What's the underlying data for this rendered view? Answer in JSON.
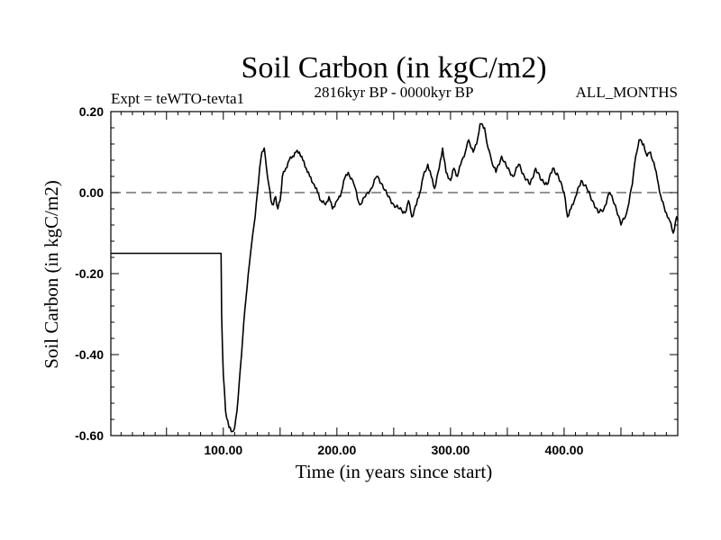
{
  "chart_data": {
    "type": "line",
    "title": "Soil Carbon (in kgC/m2)",
    "subtitle_left": "Expt = teWTO-tevta1",
    "subtitle_center": "2816kyr BP - 0000kyr BP",
    "subtitle_right": "ALL_MONTHS",
    "xlabel": "Time (in years since start)",
    "ylabel": "Soil Carbon (in kgC/m2)",
    "xlim": [
      1,
      500
    ],
    "ylim": [
      -0.6,
      0.2
    ],
    "xticks": [
      100,
      200,
      300,
      400
    ],
    "xtick_labels": [
      "100.00",
      "200.00",
      "300.00",
      "400.00"
    ],
    "yticks": [
      0.2,
      0.0,
      -0.2,
      -0.4,
      -0.6
    ],
    "ytick_labels": [
      "0.20",
      "0.00",
      "-0.20",
      "-0.40",
      "-0.60"
    ],
    "reference_line_y": 0.0,
    "series": [
      {
        "name": "Soil Carbon",
        "x": [
          1,
          98,
          98.5,
          100,
          102,
          105,
          108,
          110,
          112,
          114,
          116,
          118,
          120,
          122,
          124,
          126,
          128,
          130,
          132,
          134,
          136,
          138,
          140,
          142,
          144,
          146,
          148,
          150,
          152,
          155,
          158,
          161,
          164,
          167,
          170,
          173,
          176,
          180,
          183,
          186,
          190,
          193,
          196,
          200,
          203,
          206,
          210,
          215,
          220,
          225,
          230,
          235,
          240,
          245,
          250,
          255,
          260,
          263,
          266,
          270,
          273,
          276,
          280,
          283,
          286,
          290,
          293,
          296,
          300,
          303,
          306,
          310,
          313,
          316,
          320,
          323,
          326,
          330,
          333,
          336,
          340,
          345,
          350,
          355,
          360,
          365,
          370,
          375,
          380,
          385,
          390,
          395,
          400,
          403,
          406,
          410,
          415,
          420,
          425,
          430,
          435,
          440,
          445,
          450,
          455,
          460,
          463,
          466,
          470,
          473,
          476,
          480,
          483,
          486,
          490,
          493,
          496,
          499,
          500
        ],
        "y": [
          -0.15,
          -0.15,
          -0.3,
          -0.45,
          -0.54,
          -0.58,
          -0.59,
          -0.58,
          -0.54,
          -0.47,
          -0.4,
          -0.32,
          -0.26,
          -0.2,
          -0.15,
          -0.1,
          -0.06,
          0.0,
          0.06,
          0.1,
          0.11,
          0.06,
          0.02,
          -0.02,
          -0.03,
          -0.01,
          -0.04,
          -0.02,
          0.04,
          0.06,
          0.08,
          0.09,
          0.1,
          0.1,
          0.08,
          0.06,
          0.04,
          0.02,
          0.0,
          -0.02,
          -0.03,
          -0.01,
          -0.04,
          -0.02,
          -0.01,
          0.03,
          0.05,
          0.02,
          -0.03,
          -0.01,
          0.01,
          0.04,
          0.02,
          -0.01,
          -0.03,
          -0.04,
          -0.05,
          -0.02,
          -0.06,
          -0.03,
          0.0,
          0.04,
          0.07,
          0.04,
          0.01,
          0.06,
          0.11,
          0.05,
          0.03,
          0.06,
          0.04,
          0.08,
          0.1,
          0.13,
          0.1,
          0.12,
          0.17,
          0.16,
          0.11,
          0.08,
          0.05,
          0.09,
          0.06,
          0.04,
          0.07,
          0.04,
          0.02,
          0.06,
          0.03,
          0.02,
          0.06,
          0.04,
          0.0,
          -0.06,
          -0.04,
          -0.01,
          0.03,
          0.01,
          -0.02,
          -0.05,
          -0.04,
          0.0,
          -0.03,
          -0.08,
          -0.05,
          0.02,
          0.09,
          0.13,
          0.12,
          0.09,
          0.1,
          0.06,
          0.02,
          -0.02,
          -0.05,
          -0.07,
          -0.1,
          -0.06,
          -0.07
        ]
      }
    ]
  }
}
